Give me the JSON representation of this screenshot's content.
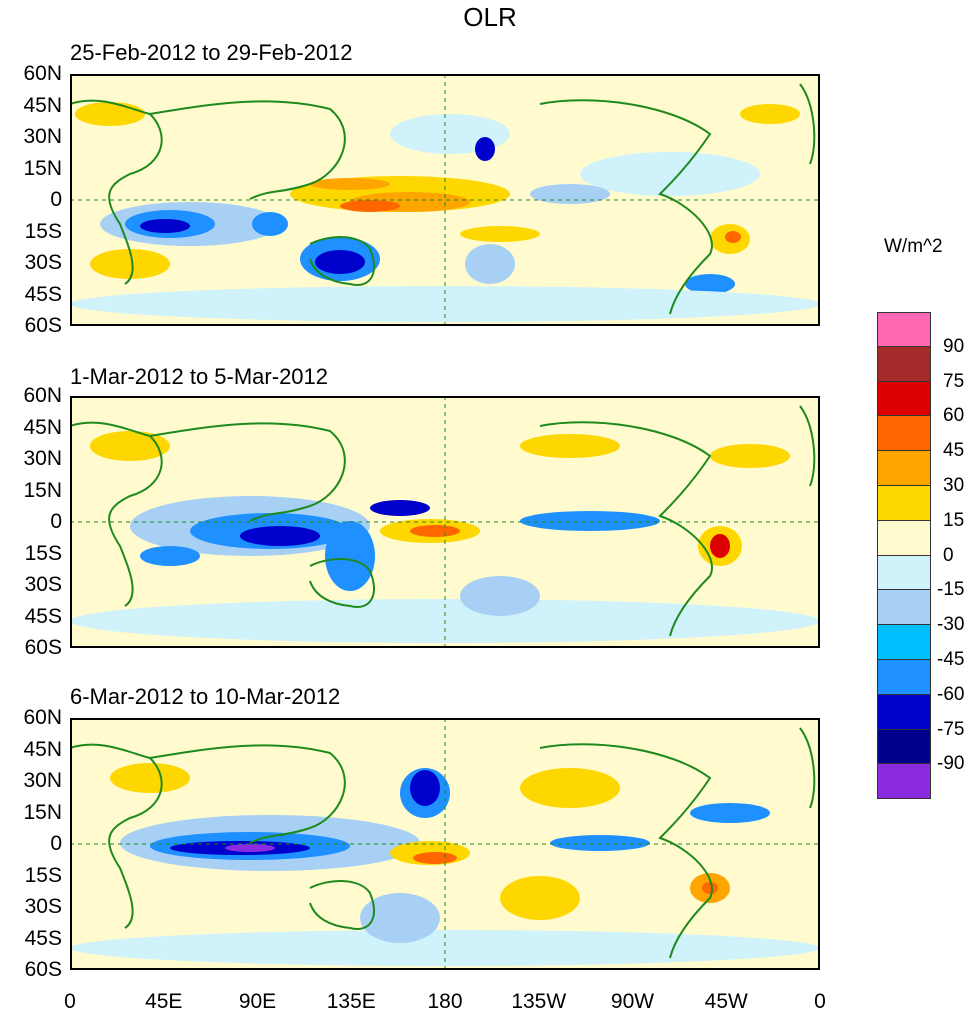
{
  "title": "OLR",
  "units": "W/m^2",
  "panels": [
    {
      "label": "25-Feb-2012 to 29-Feb-2012"
    },
    {
      "label": "1-Mar-2012 to 5-Mar-2012"
    },
    {
      "label": "6-Mar-2012 to 10-Mar-2012"
    }
  ],
  "y_ticks": [
    "60N",
    "45N",
    "30N",
    "15N",
    "0",
    "15S",
    "30S",
    "45S",
    "60S"
  ],
  "x_ticks": [
    "0",
    "45E",
    "90E",
    "135E",
    "180",
    "135W",
    "90W",
    "45W",
    "0"
  ],
  "legend": {
    "colors": [
      "#ff69b4",
      "#a52a2a",
      "#dd0000",
      "#ff6600",
      "#ffa500",
      "#ffd700",
      "#fffacd",
      "#d0f2fb",
      "#a8d0f5",
      "#00bfff",
      "#1e90ff",
      "#0000cd",
      "#00008b",
      "#8a2be2"
    ],
    "labels": [
      "90",
      "75",
      "60",
      "45",
      "30",
      "15",
      "0",
      "-15",
      "-30",
      "-45",
      "-60",
      "-75",
      "-90"
    ]
  },
  "colors": {
    "coast": "#1e8a1e",
    "background": "#fffbcf"
  }
}
